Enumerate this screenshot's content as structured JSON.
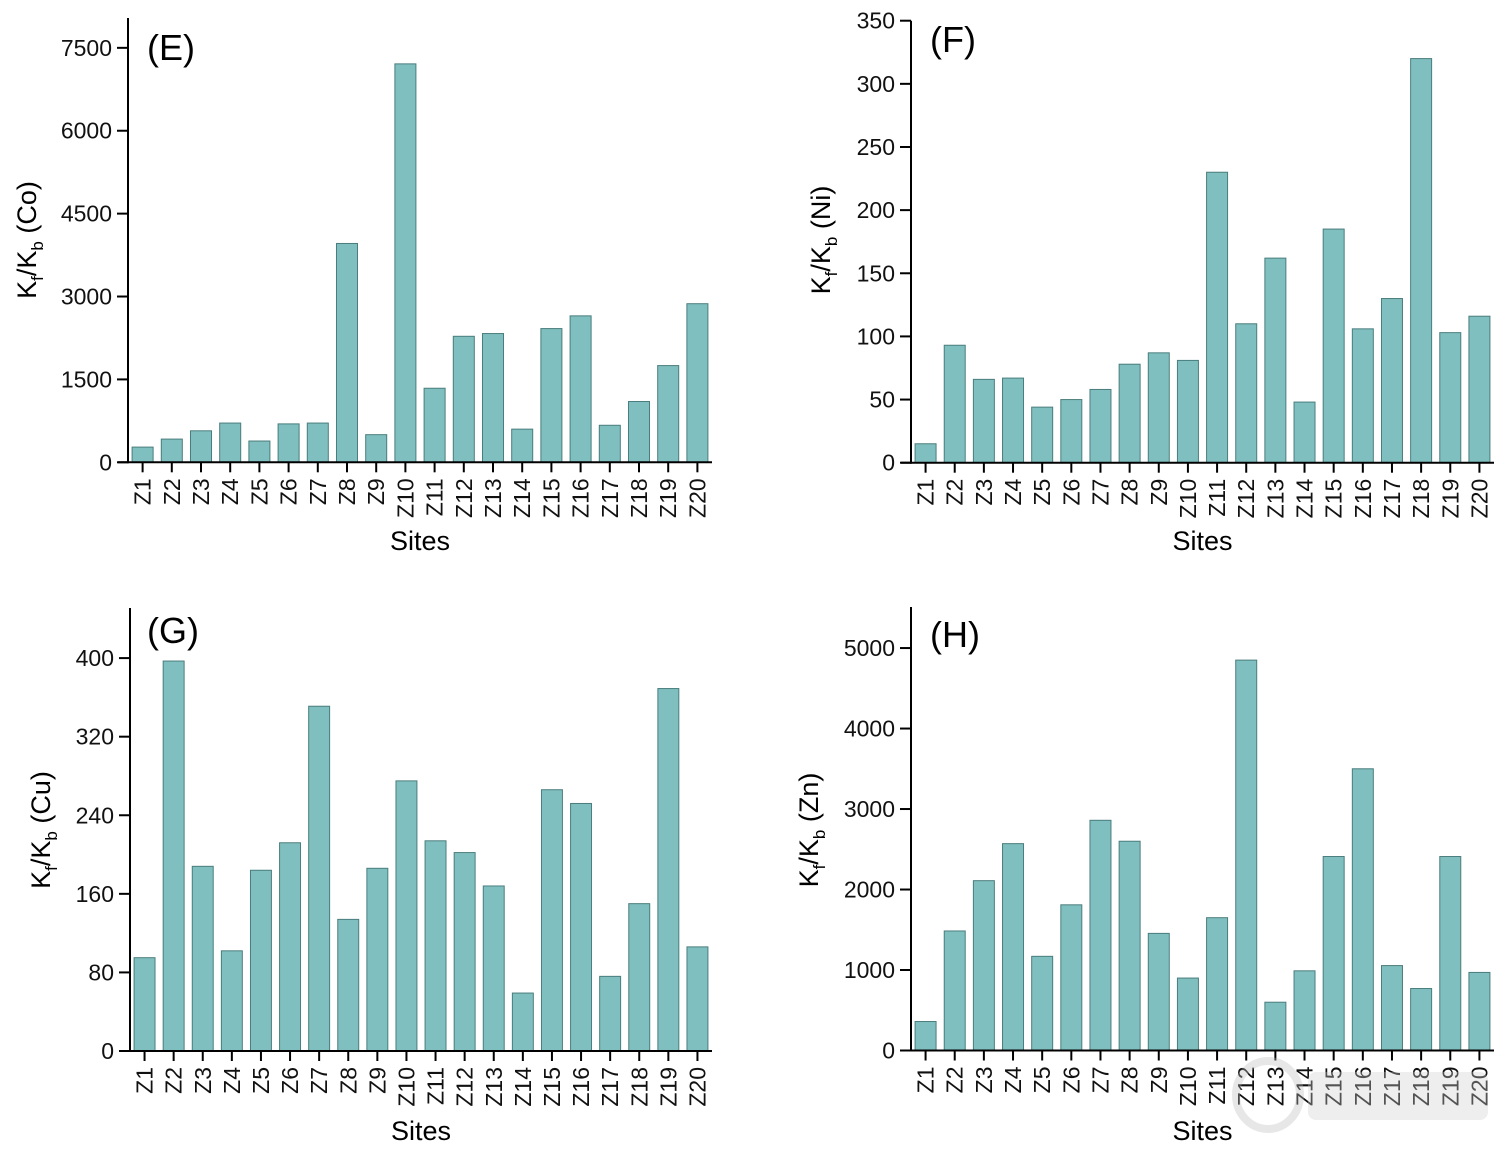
{
  "chart_data": [
    {
      "type": "bar",
      "panel_label": "(E)",
      "title": "",
      "xlabel": "Sites",
      "ylabel": "Kf/Kb (Co)",
      "ylabel_parts": {
        "k1": "K",
        "sub1": "f",
        "slash": "/",
        "k2": "K",
        "sub2": "b",
        "rest": " (Co)"
      },
      "categories": [
        "Z1",
        "Z2",
        "Z3",
        "Z4",
        "Z5",
        "Z6",
        "Z7",
        "Z8",
        "Z9",
        "Z10",
        "Z11",
        "Z12",
        "Z13",
        "Z14",
        "Z15",
        "Z16",
        "Z17",
        "Z18",
        "Z19",
        "Z20"
      ],
      "values": [
        275,
        420,
        570,
        710,
        385,
        695,
        710,
        3960,
        500,
        7210,
        1340,
        2280,
        2330,
        600,
        2420,
        2650,
        670,
        1100,
        1750,
        2870
      ],
      "yticks": [
        0,
        1500,
        3000,
        4500,
        6000,
        7500
      ],
      "ylim": [
        0,
        8040
      ],
      "grid": false,
      "legend": "none",
      "bar_color": "#80bfbf",
      "bar_edge_color": "#4a7d7d"
    },
    {
      "type": "bar",
      "panel_label": "(F)",
      "title": "",
      "xlabel": "Sites",
      "ylabel": "Kf/Kb (Ni)",
      "ylabel_parts": {
        "k1": "K",
        "sub1": "f",
        "slash": "/",
        "k2": "K",
        "sub2": "b",
        "rest": " (Ni)"
      },
      "categories": [
        "Z1",
        "Z2",
        "Z3",
        "Z4",
        "Z5",
        "Z6",
        "Z7",
        "Z8",
        "Z9",
        "Z10",
        "Z11",
        "Z12",
        "Z13",
        "Z14",
        "Z15",
        "Z16",
        "Z17",
        "Z18",
        "Z19",
        "Z20"
      ],
      "values": [
        15,
        93,
        66,
        67,
        44,
        50,
        58,
        78,
        87,
        81,
        230,
        110,
        162,
        48,
        185,
        106,
        130,
        320,
        103,
        116
      ],
      "yticks": [
        0,
        50,
        100,
        150,
        200,
        250,
        300,
        350
      ],
      "ylim": [
        0,
        350
      ],
      "grid": false,
      "legend": "none",
      "bar_color": "#80bfbf",
      "bar_edge_color": "#4a7d7d"
    },
    {
      "type": "bar",
      "panel_label": "(G)",
      "title": "",
      "xlabel": "Sites",
      "ylabel": "Kf/Kb (Cu)",
      "ylabel_parts": {
        "k1": "K",
        "sub1": "f",
        "slash": "/",
        "k2": "K",
        "sub2": "b",
        "rest": " (Cu)"
      },
      "categories": [
        "Z1",
        "Z2",
        "Z3",
        "Z4",
        "Z5",
        "Z6",
        "Z7",
        "Z8",
        "Z9",
        "Z10",
        "Z11",
        "Z12",
        "Z13",
        "Z14",
        "Z15",
        "Z16",
        "Z17",
        "Z18",
        "Z19",
        "Z20"
      ],
      "values": [
        95,
        397,
        188,
        102,
        184,
        212,
        351,
        134,
        186,
        275,
        214,
        202,
        168,
        59,
        266,
        252,
        76,
        150,
        369,
        106
      ],
      "yticks": [
        0,
        80,
        160,
        240,
        320,
        400
      ],
      "ylim": [
        0,
        451
      ],
      "grid": false,
      "legend": "none",
      "bar_color": "#80bfbf",
      "bar_edge_color": "#4a7d7d"
    },
    {
      "type": "bar",
      "panel_label": "(H)",
      "title": "",
      "xlabel": "Sites",
      "ylabel": "Kf/Kb (Zn)",
      "ylabel_parts": {
        "k1": "K",
        "sub1": "f",
        "slash": "/",
        "k2": "K",
        "sub2": "b",
        "rest": " (Zn)"
      },
      "categories": [
        "Z1",
        "Z2",
        "Z3",
        "Z4",
        "Z5",
        "Z6",
        "Z7",
        "Z8",
        "Z9",
        "Z10",
        "Z11",
        "Z12",
        "Z13",
        "Z14",
        "Z15",
        "Z16",
        "Z17",
        "Z18",
        "Z19",
        "Z20"
      ],
      "values": [
        360,
        1485,
        2110,
        2570,
        1170,
        1810,
        2860,
        2600,
        1455,
        900,
        1650,
        4850,
        600,
        990,
        2410,
        3500,
        1055,
        770,
        2410,
        970
      ],
      "yticks": [
        0,
        1000,
        2000,
        3000,
        4000,
        5000
      ],
      "ylim": [
        0,
        5510
      ],
      "grid": false,
      "legend": "none",
      "bar_color": "#80bfbf",
      "bar_edge_color": "#4a7d7d"
    }
  ]
}
